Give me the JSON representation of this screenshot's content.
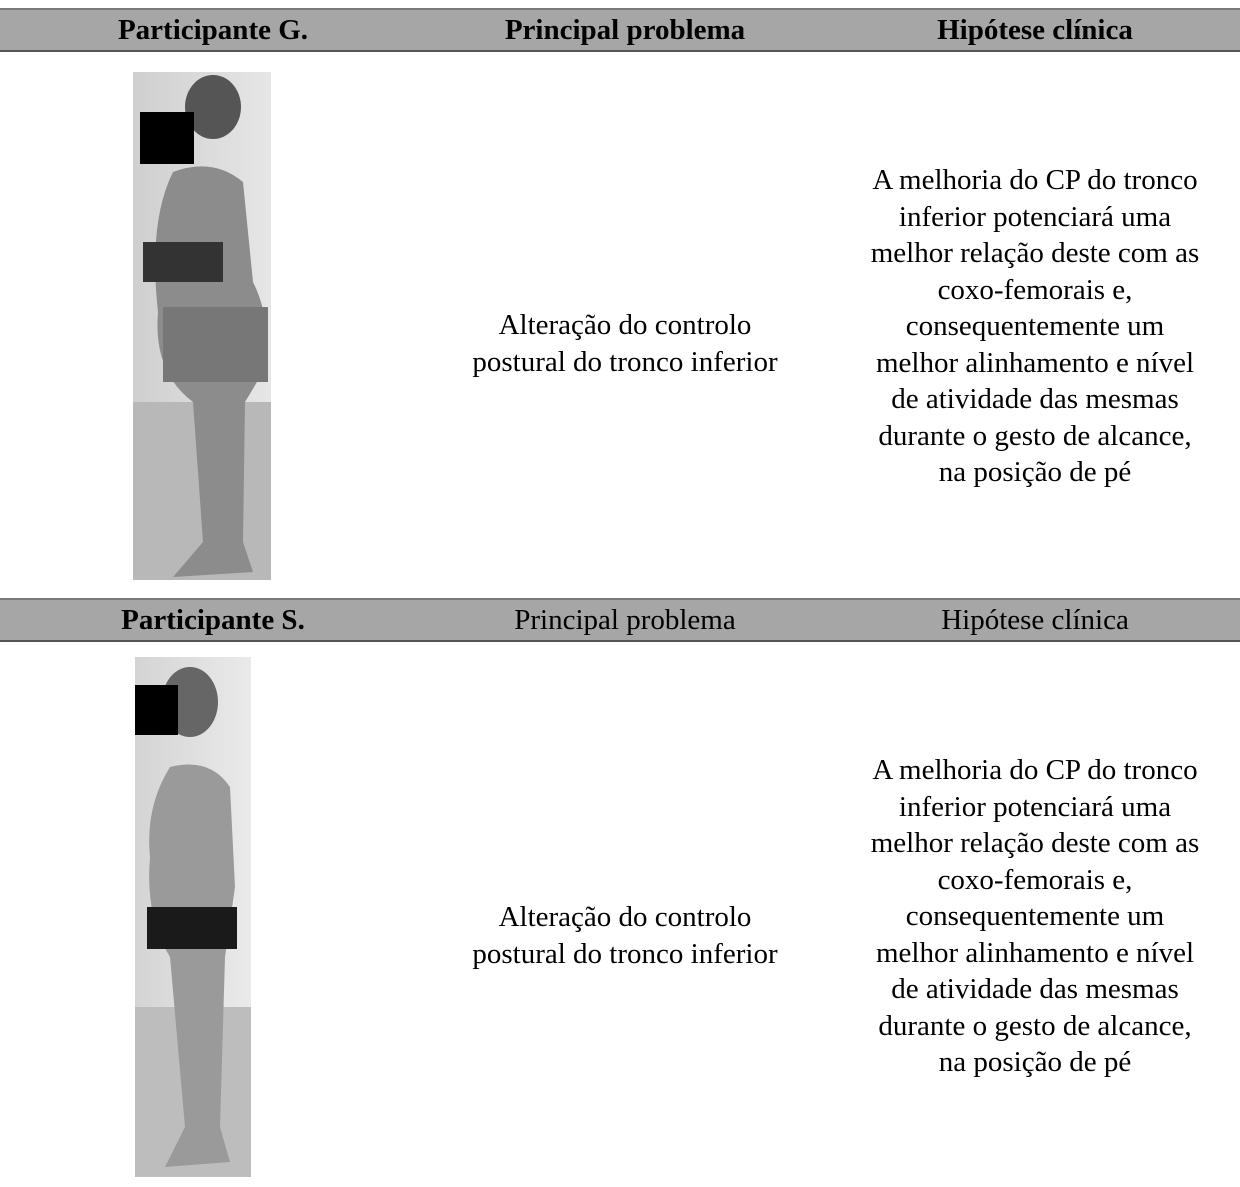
{
  "table": {
    "sections": [
      {
        "header": [
          "Participante G.",
          "Principal problema",
          "Hipótese clínica"
        ],
        "header_bold": [
          true,
          true,
          true
        ],
        "problem": [
          "Alteração do controlo",
          "postural do tronco inferior"
        ],
        "hypothesis": [
          "A melhoria do CP do tronco",
          "inferior potenciará uma",
          "melhor relação deste com as",
          "coxo-femorais e,",
          "consequentemente um",
          "melhor alinhamento e nível",
          "de atividade das mesmas",
          "durante o gesto de alcance,",
          "na posição de pé"
        ]
      },
      {
        "header": [
          "Participante S.",
          "Principal problema",
          "Hipótese clínica"
        ],
        "header_bold": [
          true,
          false,
          false
        ],
        "problem": [
          "Alteração do controlo",
          "postural do tronco inferior"
        ],
        "hypothesis": [
          "A melhoria do CP do tronco",
          "inferior potenciará uma",
          "melhor relação deste com as",
          "coxo-femorais e,",
          "consequentemente um",
          "melhor alinhamento e nível",
          "de atividade das mesmas",
          "durante o gesto de alcance,",
          "na posição de pé"
        ]
      }
    ]
  }
}
